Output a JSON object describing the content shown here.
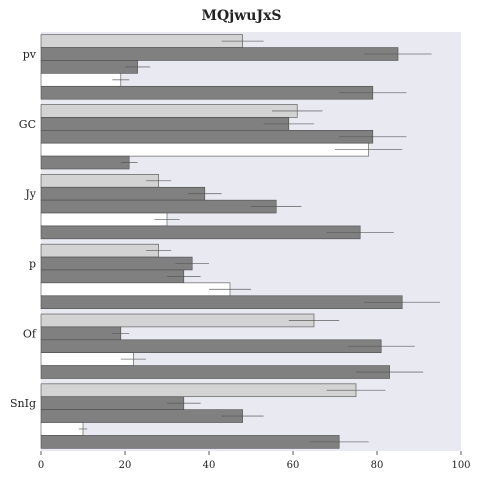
{
  "chart_data": {
    "type": "bar",
    "orientation": "horizontal",
    "title": "MQjwuJxS",
    "xlabel": "",
    "ylabel": "",
    "xlim": [
      0,
      100
    ],
    "xticks": [
      0,
      20,
      40,
      60,
      80,
      100
    ],
    "grid": false,
    "background": "#e9e9f2",
    "categories": [
      "pv",
      "GC",
      "Jy",
      "p",
      "Of",
      "SnIg"
    ],
    "series": [
      {
        "color": "#d3d3d3",
        "values": [
          48,
          61,
          28,
          28,
          65,
          75
        ],
        "errors": [
          5,
          6,
          3,
          3,
          6,
          7
        ]
      },
      {
        "color": "#808080",
        "values": [
          85,
          59,
          39,
          36,
          19,
          34
        ],
        "errors": [
          8,
          6,
          4,
          4,
          2,
          4
        ]
      },
      {
        "color": "#808080",
        "values": [
          23,
          79,
          56,
          34,
          81,
          48
        ],
        "errors": [
          3,
          8,
          6,
          4,
          8,
          5
        ]
      },
      {
        "color": "#ffffff",
        "values": [
          19,
          78,
          30,
          45,
          22,
          10
        ],
        "errors": [
          2,
          8,
          3,
          5,
          3,
          1
        ]
      },
      {
        "color": "#808080",
        "values": [
          79,
          21,
          76,
          86,
          83,
          71
        ],
        "errors": [
          8,
          2,
          8,
          9,
          8,
          7
        ]
      }
    ]
  }
}
